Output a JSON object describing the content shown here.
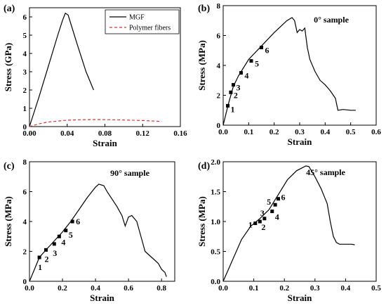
{
  "chart_data": [
    {
      "id": "a",
      "type": "line",
      "panel_label": "(a)",
      "xlabel": "Strain",
      "ylabel": "Stress (GPa)",
      "xlim": [
        0,
        0.16
      ],
      "ylim": [
        0,
        6.5
      ],
      "xticks": [
        0,
        0.04,
        0.08,
        0.12,
        0.16
      ],
      "xtick_labels": [
        "0.00",
        "0.04",
        "0.08",
        "0.12",
        "0.16"
      ],
      "yticks": [
        0,
        1,
        2,
        3,
        4,
        5,
        6
      ],
      "ytick_labels": [
        "0",
        "1",
        "2",
        "3",
        "4",
        "5",
        "6"
      ],
      "legend": {
        "position": "top-right"
      },
      "series": [
        {
          "name": "MGF",
          "color": "#000000",
          "dash": "solid",
          "x": [
            0,
            0.01,
            0.02,
            0.03,
            0.035,
            0.038,
            0.041,
            0.05,
            0.06,
            0.068
          ],
          "y": [
            0,
            1.6,
            3.3,
            5.0,
            5.8,
            6.2,
            6.1,
            4.6,
            3.0,
            2.0
          ]
        },
        {
          "name": "Polymer fibers",
          "color": "#e03030",
          "dash": "dashed",
          "x": [
            0,
            0.01,
            0.02,
            0.04,
            0.06,
            0.08,
            0.1,
            0.12,
            0.14
          ],
          "y": [
            0,
            0.15,
            0.25,
            0.35,
            0.38,
            0.38,
            0.36,
            0.33,
            0.28
          ]
        }
      ]
    },
    {
      "id": "b",
      "type": "line",
      "panel_label": "(b)",
      "annotation": "0° sample",
      "xlabel": "Strain",
      "ylabel": "Stress (MPa)",
      "xlim": [
        0,
        0.6
      ],
      "ylim": [
        0,
        8
      ],
      "xticks": [
        0,
        0.1,
        0.2,
        0.3,
        0.4,
        0.5,
        0.6
      ],
      "xtick_labels": [
        "0.0",
        "0.1",
        "0.2",
        "0.3",
        "0.4",
        "0.5",
        "0.6"
      ],
      "yticks": [
        0,
        2,
        4,
        6,
        8
      ],
      "ytick_labels": [
        "0",
        "2",
        "4",
        "6",
        "8"
      ],
      "series": [
        {
          "color": "#000000",
          "x": [
            0,
            0.02,
            0.04,
            0.06,
            0.1,
            0.15,
            0.2,
            0.25,
            0.27,
            0.28,
            0.29,
            0.3,
            0.31,
            0.32,
            0.33,
            0.34,
            0.36,
            0.38,
            0.4,
            0.42,
            0.44,
            0.45,
            0.47,
            0.5,
            0.52
          ],
          "y": [
            0,
            1.4,
            2.6,
            3.3,
            4.4,
            5.3,
            6.2,
            7.0,
            7.2,
            7.0,
            6.2,
            6.4,
            6.3,
            6.5,
            5.2,
            4.4,
            3.6,
            3.0,
            2.7,
            2.3,
            1.8,
            1.0,
            1.05,
            1.0,
            1.0
          ]
        }
      ],
      "marked_points": [
        {
          "label": "1",
          "x": 0.018,
          "y": 1.3
        },
        {
          "label": "2",
          "x": 0.03,
          "y": 2.2
        },
        {
          "label": "3",
          "x": 0.04,
          "y": 2.7
        },
        {
          "label": "4",
          "x": 0.07,
          "y": 3.5
        },
        {
          "label": "5",
          "x": 0.11,
          "y": 4.3
        },
        {
          "label": "6",
          "x": 0.15,
          "y": 5.2
        }
      ]
    },
    {
      "id": "c",
      "type": "line",
      "panel_label": "(c)",
      "annotation": "90° sample",
      "xlabel": "Strain",
      "ylabel": "Stress (MPa)",
      "xlim": [
        0,
        0.88
      ],
      "ylim": [
        0,
        8
      ],
      "xticks": [
        0,
        0.2,
        0.4,
        0.6,
        0.8
      ],
      "xtick_labels": [
        "0.0",
        "0.2",
        "0.4",
        "0.6",
        "0.8"
      ],
      "yticks": [
        0,
        2,
        4,
        6,
        8
      ],
      "ytick_labels": [
        "0",
        "2",
        "4",
        "6",
        "8"
      ],
      "series": [
        {
          "color": "#000000",
          "x": [
            0,
            0.03,
            0.06,
            0.1,
            0.15,
            0.2,
            0.25,
            0.3,
            0.35,
            0.4,
            0.42,
            0.45,
            0.47,
            0.5,
            0.53,
            0.56,
            0.58,
            0.6,
            0.62,
            0.65,
            0.68,
            0.7,
            0.74,
            0.78,
            0.8,
            0.82,
            0.83
          ],
          "y": [
            0,
            0.8,
            1.6,
            2.1,
            2.7,
            3.3,
            4.0,
            4.8,
            5.6,
            6.3,
            6.5,
            6.4,
            6.0,
            5.5,
            5.0,
            4.4,
            3.7,
            4.3,
            4.4,
            4.0,
            2.8,
            2.0,
            1.6,
            1.2,
            0.8,
            0.6,
            0.3
          ]
        }
      ],
      "marked_points": [
        {
          "label": "1",
          "x": 0.06,
          "y": 1.6
        },
        {
          "label": "2",
          "x": 0.1,
          "y": 2.1
        },
        {
          "label": "3",
          "x": 0.15,
          "y": 2.5
        },
        {
          "label": "4",
          "x": 0.18,
          "y": 3.0
        },
        {
          "label": "5",
          "x": 0.22,
          "y": 3.4
        },
        {
          "label": "6",
          "x": 0.26,
          "y": 4.0
        }
      ]
    },
    {
      "id": "d",
      "type": "line",
      "panel_label": "(d)",
      "annotation": "45° sample",
      "xlabel": "Strain",
      "ylabel": "Stress (MPa)",
      "xlim": [
        0,
        0.5
      ],
      "ylim": [
        0,
        2.0
      ],
      "xticks": [
        0,
        0.1,
        0.2,
        0.3,
        0.4,
        0.5
      ],
      "xtick_labels": [
        "0.0",
        "0.1",
        "0.2",
        "0.3",
        "0.4",
        "0.5"
      ],
      "yticks": [
        0,
        0.5,
        1.0,
        1.5,
        2.0
      ],
      "ytick_labels": [
        "0.0",
        "0.5",
        "1.0",
        "1.5",
        "2.0"
      ],
      "series": [
        {
          "color": "#000000",
          "x": [
            0,
            0.03,
            0.06,
            0.09,
            0.12,
            0.15,
            0.18,
            0.21,
            0.24,
            0.27,
            0.28,
            0.3,
            0.32,
            0.34,
            0.35,
            0.36,
            0.37,
            0.38,
            0.4,
            0.42,
            0.43
          ],
          "y": [
            0,
            0.35,
            0.7,
            0.92,
            1.05,
            1.2,
            1.45,
            1.7,
            1.85,
            1.93,
            1.92,
            1.75,
            1.55,
            1.3,
            1.0,
            0.75,
            0.65,
            0.62,
            0.62,
            0.62,
            0.61
          ]
        }
      ],
      "marked_points": [
        {
          "label": "1",
          "x": 0.105,
          "y": 0.97
        },
        {
          "label": "2",
          "x": 0.12,
          "y": 1.0
        },
        {
          "label": "3",
          "x": 0.135,
          "y": 1.05
        },
        {
          "label": "4",
          "x": 0.16,
          "y": 1.17
        },
        {
          "label": "5",
          "x": 0.17,
          "y": 1.28
        },
        {
          "label": "6",
          "x": 0.18,
          "y": 1.38
        }
      ]
    }
  ]
}
